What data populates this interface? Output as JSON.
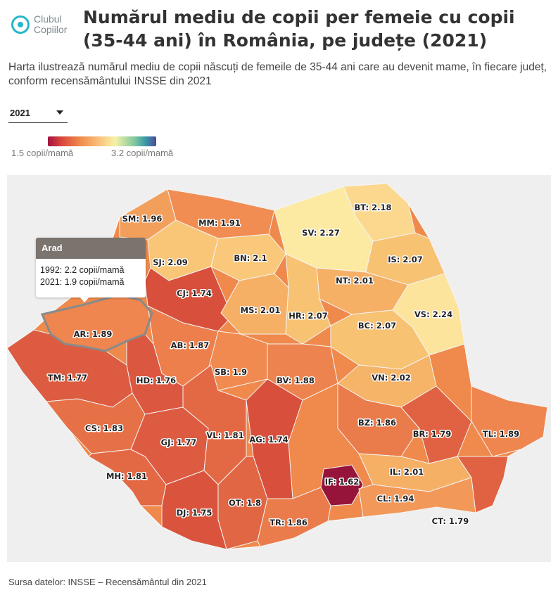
{
  "brand": {
    "line1": "Clubul",
    "line2": "Copiilor"
  },
  "title": "Numărul mediu de copii per femeie cu copii (35-44 ani) în România, pe județe (2021)",
  "subtitle": "Harta ilustrează numărul mediu de copii născuți de femeile de 35-44 ani care au devenit mame, în fiecare județ, conform recensământului INSSE din 2021",
  "year_select": {
    "value": "2021"
  },
  "legend": {
    "min_label": "1.5 copii/mamă",
    "max_label": "3.2 copii/mamă",
    "min": 1.5,
    "max": 3.2
  },
  "tooltip": {
    "county": "Arad",
    "line1": "1992: 2.2 copii/mamă",
    "line2": "2021: 1.9 copii/mamă"
  },
  "colors": {
    "low": "#a2123f",
    "mid_low": "#e8653f",
    "mid": "#f7b86a",
    "mid_high": "#fdf2b0",
    "high": "#4e4a9a",
    "bucharest": "#8c0b36"
  },
  "counties": [
    {
      "code": "SM",
      "label": "SM: 1.96",
      "value": 1.96
    },
    {
      "code": "MM",
      "label": "MM: 1.91",
      "value": 1.91
    },
    {
      "code": "BT",
      "label": "BT: 2.18",
      "value": 2.18
    },
    {
      "code": "SV",
      "label": "SV: 2.27",
      "value": 2.27
    },
    {
      "code": "SJ",
      "label": "SJ: 2.09",
      "value": 2.09
    },
    {
      "code": "BN",
      "label": "BN: 2.1",
      "value": 2.1
    },
    {
      "code": "IS",
      "label": "IS: 2.07",
      "value": 2.07
    },
    {
      "code": "CJ",
      "label": "CJ: 1.74",
      "value": 1.74
    },
    {
      "code": "NT",
      "label": "NT: 2.01",
      "value": 2.01
    },
    {
      "code": "MS",
      "label": "MS: 2.01",
      "value": 2.01
    },
    {
      "code": "HR",
      "label": "HR: 2.07",
      "value": 2.07
    },
    {
      "code": "VS",
      "label": "VS: 2.24",
      "value": 2.24
    },
    {
      "code": "AR",
      "label": "AR: 1.89",
      "value": 1.89
    },
    {
      "code": "BC",
      "label": "BC: 2.07",
      "value": 2.07
    },
    {
      "code": "AB",
      "label": "AB: 1.87",
      "value": 1.87
    },
    {
      "code": "SB",
      "label": "SB: 1.9",
      "value": 1.9
    },
    {
      "code": "TM",
      "label": "TM: 1.77",
      "value": 1.77
    },
    {
      "code": "HD",
      "label": "HD: 1.76",
      "value": 1.76
    },
    {
      "code": "BV",
      "label": "BV: 1.88",
      "value": 1.88
    },
    {
      "code": "VN",
      "label": "VN: 2.02",
      "value": 2.02
    },
    {
      "code": "CS",
      "label": "CS: 1.83",
      "value": 1.83
    },
    {
      "code": "BZ",
      "label": "BZ: 1.86",
      "value": 1.86
    },
    {
      "code": "BR",
      "label": "BR: 1.79",
      "value": 1.79
    },
    {
      "code": "TL",
      "label": "TL: 1.89",
      "value": 1.89
    },
    {
      "code": "GJ",
      "label": "GJ: 1.77",
      "value": 1.77
    },
    {
      "code": "VL",
      "label": "VL: 1.81",
      "value": 1.81
    },
    {
      "code": "AG",
      "label": "AG: 1.74",
      "value": 1.74
    },
    {
      "code": "MH",
      "label": "MH: 1.81",
      "value": 1.81
    },
    {
      "code": "IL",
      "label": "IL: 2.01",
      "value": 2.01
    },
    {
      "code": "IF",
      "label": "IF: 1.62",
      "value": 1.62
    },
    {
      "code": "CL",
      "label": "CL: 1.94",
      "value": 1.94
    },
    {
      "code": "CT",
      "label": "CT: 1.79",
      "value": 1.79
    },
    {
      "code": "OT",
      "label": "OT: 1.8",
      "value": 1.8
    },
    {
      "code": "DJ",
      "label": "DJ: 1.75",
      "value": 1.75
    },
    {
      "code": "TR",
      "label": "TR: 1.86",
      "value": 1.86
    }
  ],
  "source": "Sursa datelor: INSSE – Recensământul din 2021"
}
